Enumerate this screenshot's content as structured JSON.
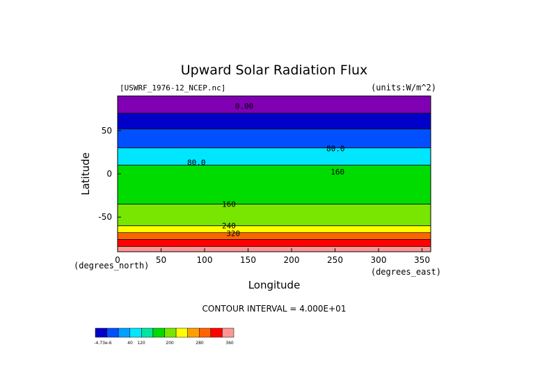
{
  "chart_data": {
    "type": "heatmap",
    "title": "Upward Solar Radiation Flux",
    "file_label": "[USWRF_1976-12_NCEP.nc]",
    "units_label": "(units:W/m^2)",
    "xlabel": "Longitude",
    "ylabel": "Latitude",
    "x_unit_note": "(degrees_east)",
    "y_unit_note": "(degrees_north)",
    "xlim": [
      0,
      360
    ],
    "ylim": [
      -90,
      90
    ],
    "x_ticks": [
      0,
      50,
      100,
      150,
      200,
      250,
      300,
      350
    ],
    "y_ticks": [
      50,
      0,
      -50
    ],
    "contour_interval_text": "CONTOUR INTERVAL = 4.000E+01",
    "contour_labels": [
      "0.00",
      "80.0",
      "80.0",
      "160",
      "160",
      "240",
      "320"
    ],
    "colorbar": {
      "labels": [
        "-4.73e-6",
        "40",
        "120",
        "200",
        "280",
        "360"
      ],
      "colors": [
        "#0000c8",
        "#0050ff",
        "#00a0ff",
        "#00e6ff",
        "#00e6a0",
        "#00dc00",
        "#78e600",
        "#ffff00",
        "#ffa000",
        "#ff6400",
        "#ff0000",
        "#ff9696"
      ]
    },
    "bands": [
      {
        "lat_top": 90,
        "lat_bottom": 70,
        "color": "#8000b4"
      },
      {
        "lat_top": 70,
        "lat_bottom": 52,
        "color": "#0000c8"
      },
      {
        "lat_top": 52,
        "lat_bottom": 30,
        "color": "#0050ff"
      },
      {
        "lat_top": 30,
        "lat_bottom": 10,
        "color": "#00e6ff"
      },
      {
        "lat_top": 10,
        "lat_bottom": -35,
        "color": "#00dc00"
      },
      {
        "lat_top": -35,
        "lat_bottom": -60,
        "color": "#78e600"
      },
      {
        "lat_top": -60,
        "lat_bottom": -68,
        "color": "#ffff00"
      },
      {
        "lat_top": -68,
        "lat_bottom": -76,
        "color": "#ff6400"
      },
      {
        "lat_top": -76,
        "lat_bottom": -84,
        "color": "#ff0000"
      },
      {
        "lat_top": -84,
        "lat_bottom": -90,
        "color": "#ff9696"
      }
    ]
  }
}
